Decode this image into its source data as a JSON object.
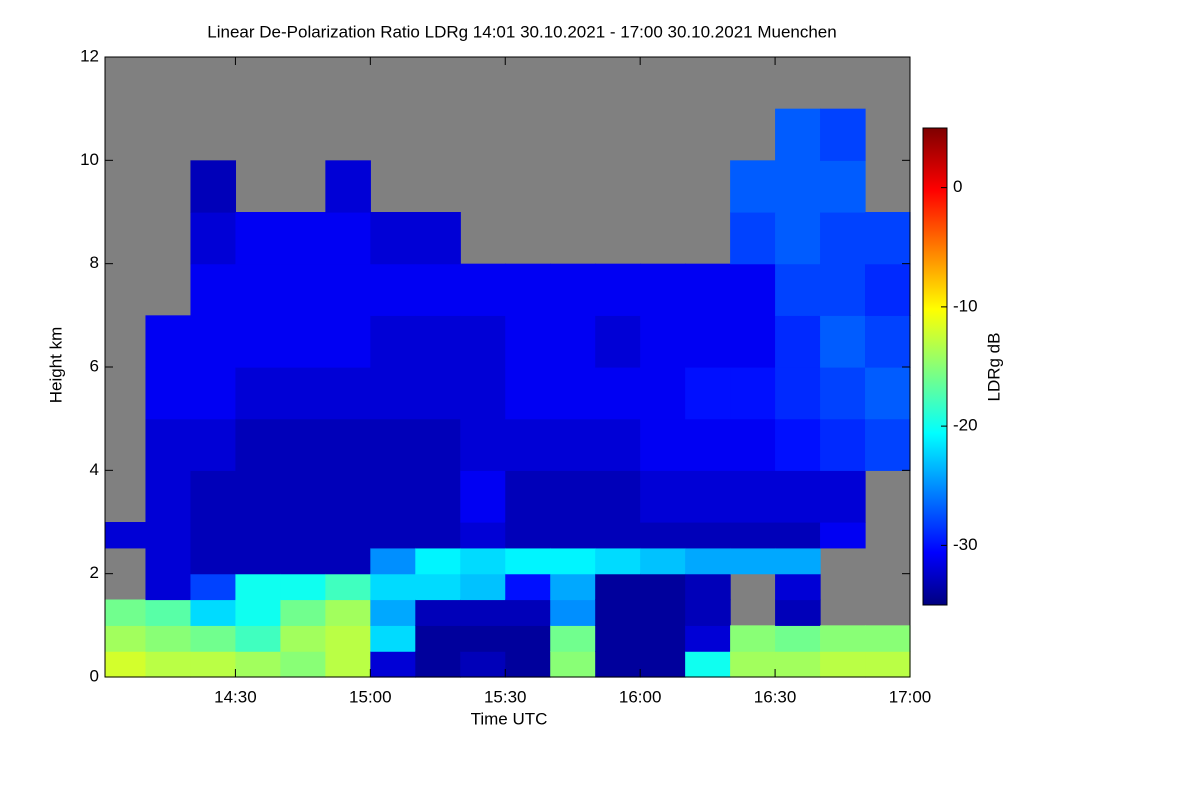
{
  "chart_data": {
    "type": "heatmap",
    "title": "Linear De-Polarization Ratio LDRg   14:01 30.10.2021 - 17:00 30.10.2021 Muenchen",
    "x_label": "Time UTC",
    "y_label": "Height km",
    "colorbar_label": "LDRg dB",
    "colormap": "jet",
    "missing_color": "#808080",
    "x": [
      841,
      850,
      860,
      870,
      880,
      890,
      900,
      910,
      920,
      930,
      940,
      950,
      960,
      970,
      980,
      990,
      1000,
      1010,
      1020
    ],
    "y": [
      0,
      0.5,
      1,
      1.5,
      2,
      2.5,
      3,
      4,
      5,
      6,
      7,
      8,
      9,
      10,
      11,
      12
    ],
    "values": [
      [
        -12,
        -14,
        -16,
        null,
        null,
        -32,
        null,
        null,
        null,
        null,
        null,
        null,
        null,
        null,
        null
      ],
      [
        -13,
        -15,
        -17,
        -32,
        -32,
        -32,
        -32,
        -32,
        -31,
        -31,
        null,
        null,
        null,
        null,
        null
      ],
      [
        -13,
        -16,
        -22,
        -28,
        -33,
        -33,
        -33,
        -32,
        -31,
        -31,
        -31,
        -32,
        -33,
        null,
        null
      ],
      [
        -14,
        -18,
        -20,
        -20,
        -33,
        -33,
        -33,
        -33,
        -32,
        -31,
        -31,
        -31,
        null,
        null,
        null
      ],
      [
        -15,
        -14,
        -16,
        -20,
        -33,
        -33,
        -33,
        -33,
        -32,
        -31,
        -31,
        -31,
        null,
        null,
        null
      ],
      [
        -13,
        -13,
        -14,
        -18,
        -33,
        -33,
        -33,
        -33,
        -32,
        -31,
        -31,
        -31,
        -32,
        null,
        null
      ],
      [
        -32,
        -22,
        -24,
        -22,
        -25,
        -33,
        -33,
        -33,
        -32,
        -32,
        -31,
        -32,
        null,
        null,
        null
      ],
      [
        -34,
        -34,
        -33,
        -22,
        -21,
        -33,
        -33,
        -33,
        -32,
        -32,
        -31,
        -32,
        null,
        null,
        null
      ],
      [
        -33,
        -34,
        -33,
        -23,
        -22,
        -32,
        -31,
        -32,
        -32,
        -32,
        -31,
        null,
        null,
        null,
        null
      ],
      [
        -34,
        -34,
        -33,
        -30,
        -21,
        -33,
        -33,
        -32,
        -31,
        -31,
        -31,
        null,
        null,
        null,
        null
      ],
      [
        -15,
        -16,
        -25,
        -24,
        -21,
        -33,
        -33,
        -32,
        -31,
        -31,
        -31,
        null,
        null,
        null,
        null
      ],
      [
        -34,
        -34,
        -34,
        -34,
        -22,
        -33,
        -33,
        -32,
        -31,
        -32,
        -31,
        null,
        null,
        null,
        null
      ],
      [
        -34,
        -34,
        -34,
        -34,
        -23,
        -33,
        -32,
        -31,
        -31,
        -31,
        -31,
        null,
        null,
        null,
        null
      ],
      [
        -20,
        -32,
        -33,
        -33,
        -24,
        -33,
        -32,
        -31,
        -30,
        -31,
        -31,
        null,
        null,
        null,
        null
      ],
      [
        -14,
        -15,
        null,
        null,
        -24,
        -33,
        -32,
        -31,
        -30,
        -31,
        -31,
        -28,
        -27,
        null,
        null
      ],
      [
        -14,
        -16,
        -33,
        -32,
        -24,
        -33,
        -32,
        -30,
        -29,
        -29,
        -28,
        -27,
        -27,
        -27,
        null
      ],
      [
        -13,
        -15,
        null,
        null,
        null,
        -31,
        -32,
        -29,
        -28,
        -27,
        -28,
        -28,
        -27,
        -28,
        null
      ],
      [
        -13,
        -15,
        null,
        null,
        null,
        null,
        null,
        -28,
        -27,
        -28,
        -29,
        -28,
        null,
        null,
        null
      ]
    ],
    "xlim": [
      841,
      1020
    ],
    "xticks": [
      {
        "value": 870,
        "label": "14:30"
      },
      {
        "value": 900,
        "label": "15:00"
      },
      {
        "value": 930,
        "label": "15:30"
      },
      {
        "value": 960,
        "label": "16:00"
      },
      {
        "value": 990,
        "label": "16:30"
      },
      {
        "value": 1020,
        "label": "17:00"
      }
    ],
    "ylim": [
      0,
      12
    ],
    "yticks": [
      0,
      2,
      4,
      6,
      8,
      10,
      12
    ],
    "clim": [
      -35,
      5
    ],
    "cticks": [
      0,
      -10,
      -20,
      -30
    ]
  }
}
